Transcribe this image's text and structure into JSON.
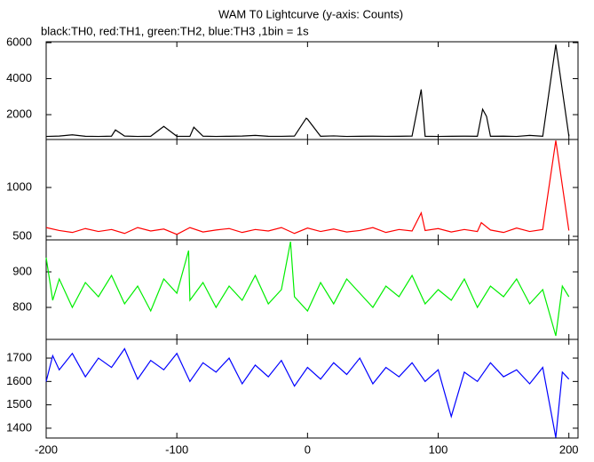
{
  "chart_data": [
    {
      "type": "line",
      "title": "WAM T0 Lightcurve (y-axis: Counts)",
      "subtitle": "black:TH0, red:TH1, green:TH2, blue:TH3 ,1bin = 1s",
      "color": "#000000",
      "x": [
        -200,
        -190,
        -180,
        -170,
        -160,
        -150,
        -147,
        -140,
        -130,
        -120,
        -110,
        -100,
        -90,
        -87,
        -80,
        -70,
        -60,
        -50,
        -40,
        -30,
        -20,
        -10,
        -1,
        0,
        10,
        20,
        30,
        40,
        50,
        60,
        70,
        80,
        87,
        90,
        100,
        110,
        120,
        130,
        134,
        137,
        140,
        150,
        160,
        170,
        180,
        190,
        200
      ],
      "values": [
        790,
        810,
        880,
        800,
        790,
        805,
        1150,
        810,
        790,
        800,
        1350,
        800,
        795,
        1300,
        805,
        790,
        800,
        810,
        850,
        800,
        795,
        810,
        1800,
        1750,
        800,
        820,
        790,
        800,
        805,
        795,
        800,
        810,
        3400,
        800,
        790,
        800,
        805,
        800,
        2300,
        1900,
        800,
        805,
        790,
        850,
        800,
        5900,
        810
      ],
      "xlim": [
        -200,
        207
      ],
      "ylim": [
        620,
        6050
      ],
      "yticks": [
        2000,
        4000,
        6000
      ]
    },
    {
      "type": "line",
      "color": "#ff0000",
      "x": [
        -200,
        -190,
        -180,
        -170,
        -160,
        -150,
        -140,
        -130,
        -120,
        -110,
        -100,
        -90,
        -80,
        -70,
        -60,
        -50,
        -40,
        -30,
        -20,
        -10,
        0,
        10,
        20,
        30,
        40,
        50,
        60,
        70,
        80,
        87,
        90,
        100,
        110,
        120,
        130,
        133,
        140,
        150,
        160,
        170,
        180,
        190,
        200
      ],
      "values": [
        590,
        560,
        540,
        580,
        550,
        570,
        530,
        590,
        555,
        575,
        520,
        590,
        545,
        565,
        580,
        540,
        570,
        555,
        590,
        530,
        585,
        550,
        575,
        545,
        560,
        590,
        540,
        570,
        555,
        740,
        560,
        580,
        545,
        570,
        550,
        640,
        565,
        540,
        585,
        550,
        570,
        1480,
        560
      ],
      "xlim": [
        -200,
        207
      ],
      "ylim": [
        464,
        1491
      ],
      "yticks": [
        500,
        1000
      ]
    },
    {
      "type": "line",
      "color": "#00ee00",
      "x": [
        -200,
        -195,
        -190,
        -180,
        -170,
        -160,
        -150,
        -140,
        -130,
        -120,
        -110,
        -100,
        -91,
        -90,
        -80,
        -70,
        -60,
        -50,
        -40,
        -30,
        -20,
        -13,
        -10,
        0,
        10,
        20,
        30,
        40,
        50,
        60,
        70,
        80,
        90,
        100,
        110,
        120,
        130,
        140,
        150,
        160,
        170,
        180,
        190,
        195,
        200
      ],
      "values": [
        940,
        820,
        880,
        800,
        870,
        830,
        890,
        810,
        860,
        790,
        880,
        840,
        960,
        820,
        870,
        800,
        860,
        820,
        890,
        810,
        850,
        985,
        830,
        790,
        870,
        810,
        880,
        840,
        800,
        860,
        830,
        890,
        810,
        850,
        820,
        880,
        800,
        860,
        830,
        880,
        810,
        850,
        720,
        860,
        830
      ],
      "xlim": [
        -200,
        207
      ],
      "ylim": [
        710,
        990
      ],
      "yticks": [
        800,
        900
      ]
    },
    {
      "type": "line",
      "color": "#0000ff",
      "x": [
        -200,
        -195,
        -190,
        -180,
        -170,
        -160,
        -150,
        -140,
        -130,
        -120,
        -110,
        -100,
        -90,
        -80,
        -70,
        -60,
        -50,
        -40,
        -30,
        -20,
        -10,
        0,
        10,
        20,
        30,
        40,
        50,
        60,
        70,
        80,
        90,
        100,
        110,
        120,
        130,
        140,
        150,
        160,
        170,
        180,
        190,
        195,
        200
      ],
      "values": [
        1600,
        1710,
        1650,
        1720,
        1620,
        1700,
        1660,
        1740,
        1610,
        1690,
        1650,
        1720,
        1600,
        1680,
        1640,
        1700,
        1590,
        1670,
        1620,
        1690,
        1580,
        1660,
        1610,
        1680,
        1630,
        1700,
        1590,
        1660,
        1620,
        1680,
        1600,
        1650,
        1450,
        1640,
        1600,
        1680,
        1620,
        1650,
        1590,
        1660,
        1360,
        1640,
        1610
      ],
      "xlim": [
        -200,
        207
      ],
      "ylim": [
        1358,
        1780
      ],
      "yticks": [
        1400,
        1500,
        1600,
        1700
      ],
      "xticks": [
        -200,
        -100,
        0,
        100,
        200
      ]
    }
  ]
}
